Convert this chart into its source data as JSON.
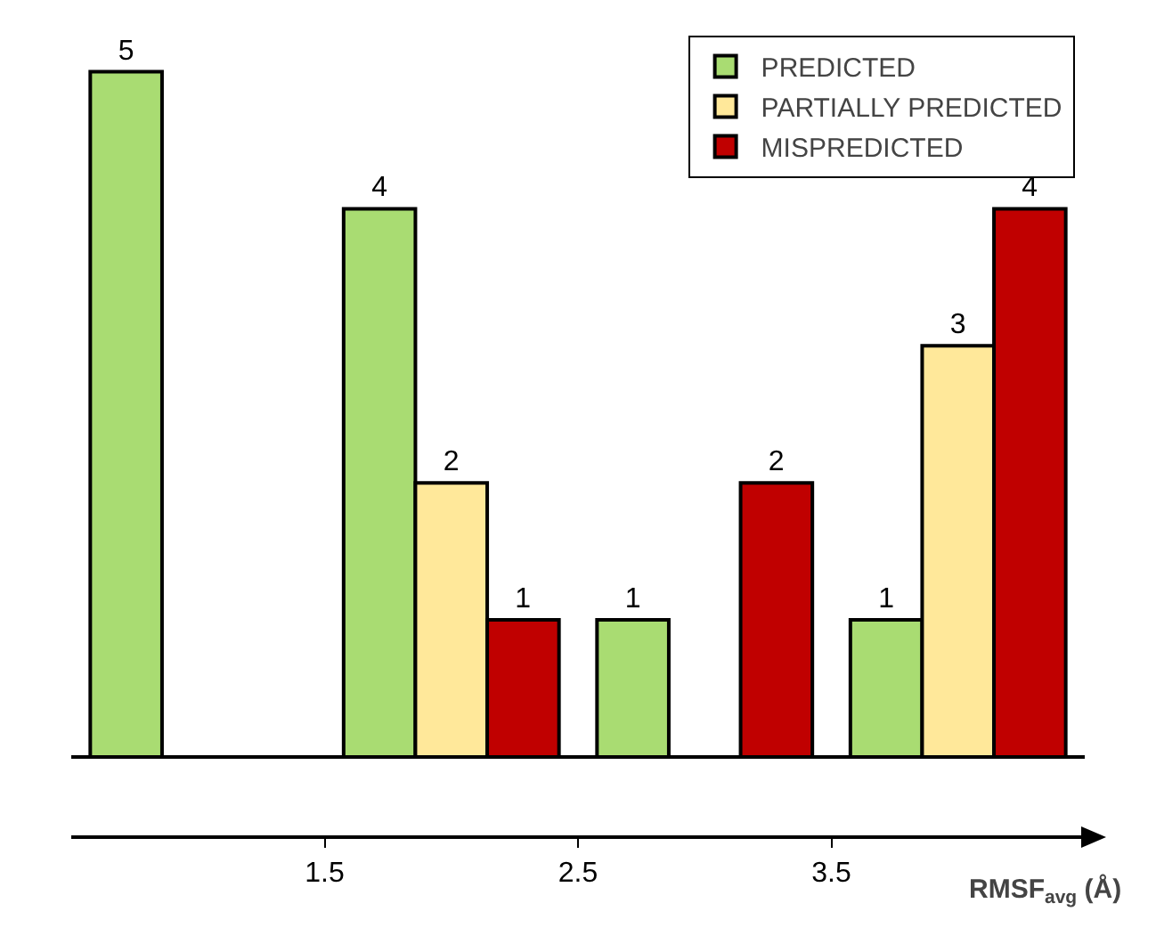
{
  "chart_data": {
    "type": "bar",
    "x": [
      1,
      2,
      3,
      4
    ],
    "xlim": [
      0.5,
      4.5
    ],
    "xticks": [
      1.5,
      2.5,
      3.5
    ],
    "xlabel": "RMSF$_{avg}$ (Å)",
    "tick_labels": "x",
    "data_labels": true,
    "legend": "top right",
    "grid": false,
    "series": [
      {
        "name": "PREDICTED",
        "color": "#a9dc72",
        "values": [
          5,
          4,
          1,
          1
        ]
      },
      {
        "name": "PARTIALLY PREDICTED",
        "color": "#ffe89a",
        "values": [
          null,
          2,
          null,
          3
        ]
      },
      {
        "name": "MISPREDICTED",
        "color": "#c00000",
        "values": [
          null,
          1,
          2,
          4
        ]
      }
    ]
  }
}
